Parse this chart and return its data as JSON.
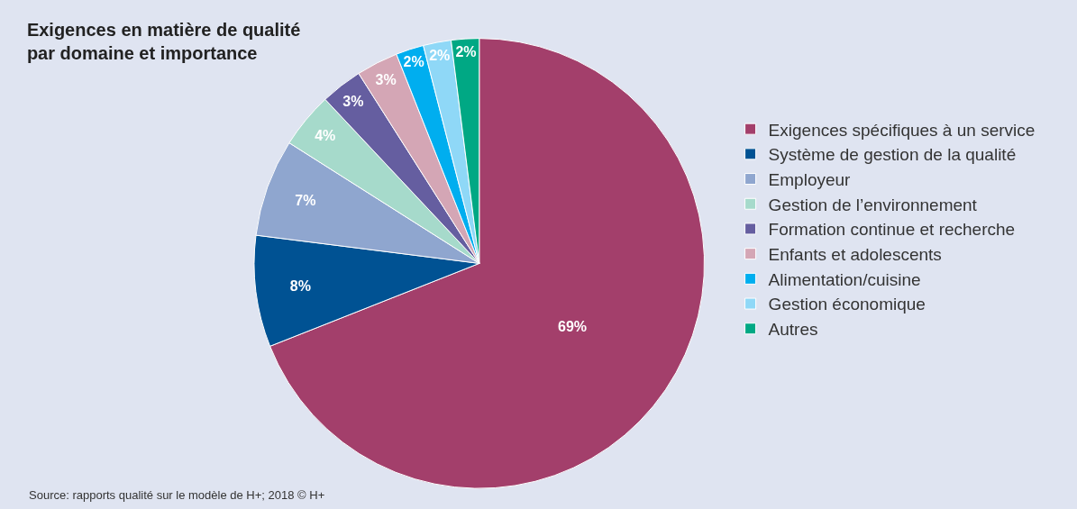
{
  "chart_data": {
    "type": "pie",
    "title": "Exigences en matière de qualité\npar domaine et importance",
    "categories": [
      "Exigences spécifiques à un service",
      "Système de gestion de la qualité",
      "Employeur",
      "Gestion de l’environnement",
      "Formation continue et recherche",
      "Enfants et adolescents",
      "Alimentation/cuisine",
      "Gestion économique",
      "Autres"
    ],
    "values": [
      69,
      8,
      7,
      4,
      3,
      3,
      2,
      2,
      2
    ],
    "value_labels": [
      "69%",
      "8%",
      "7%",
      "4%",
      "3%",
      "3%",
      "2%",
      "2%",
      "2%"
    ],
    "colors": [
      "#a33f6b",
      "#005293",
      "#8fa6cf",
      "#a6dacb",
      "#655ea0",
      "#d4a6b5",
      "#00aeef",
      "#8fd8f7",
      "#00a884"
    ],
    "legend": "right",
    "annotations": [
      "Source: rapports qualité sur le modèle de H+; 2018 © H+"
    ]
  }
}
